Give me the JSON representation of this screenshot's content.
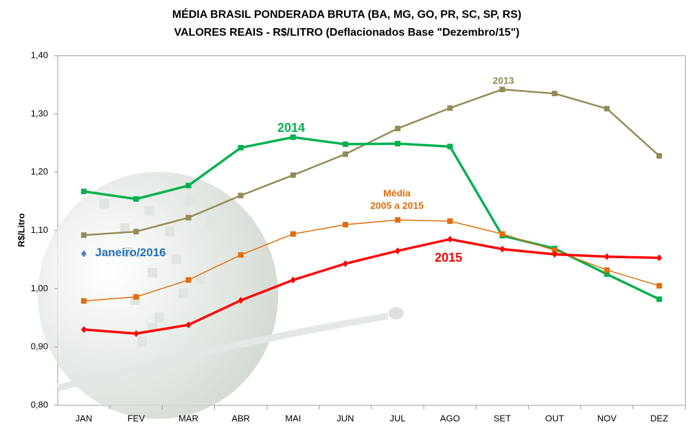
{
  "chart_data": {
    "type": "line",
    "title": [
      "MÉDIA BRASIL PONDERADA BRUTA (BA, MG, GO, PR, SC, SP, RS)",
      "VALORES REAIS - R$/LITRO (Deflacionados Base \"Dezembro/15\")"
    ],
    "y_label": "R$/Litro",
    "categories": [
      "JAN",
      "FEV",
      "MAR",
      "ABR",
      "MAI",
      "JUN",
      "JUL",
      "AGO",
      "SET",
      "OUT",
      "NOV",
      "DEZ"
    ],
    "ylim": [
      0.8,
      1.4
    ],
    "yticks": [
      {
        "value": 0.8,
        "label": "0,80"
      },
      {
        "value": 0.9,
        "label": "0,90"
      },
      {
        "value": 1.0,
        "label": "1,00"
      },
      {
        "value": 1.1,
        "label": "1,10"
      },
      {
        "value": 1.2,
        "label": "1,20"
      },
      {
        "value": 1.3,
        "label": "1,30"
      },
      {
        "value": 1.4,
        "label": "1,40"
      }
    ],
    "grid": false,
    "series": [
      {
        "name": "2013",
        "color": "#948a54",
        "marker": "square",
        "values": [
          1.092,
          1.098,
          1.122,
          1.16,
          1.195,
          1.231,
          1.275,
          1.31,
          1.342,
          1.335,
          1.309,
          1.228
        ]
      },
      {
        "name": "2014",
        "color": "#00b050",
        "marker": "square",
        "values": [
          1.167,
          1.154,
          1.177,
          1.242,
          1.26,
          1.248,
          1.249,
          1.244,
          1.091,
          1.069,
          1.025,
          0.982
        ]
      },
      {
        "name": "Média\n2005 a 2015",
        "color": "#e36c09",
        "marker": "square",
        "values": [
          0.979,
          0.986,
          1.015,
          1.058,
          1.094,
          1.11,
          1.118,
          1.116,
          1.094,
          1.066,
          1.032,
          1.005
        ]
      },
      {
        "name": "2015",
        "color": "#ff0000",
        "marker": "diamond",
        "values": [
          0.93,
          0.923,
          0.938,
          0.98,
          1.015,
          1.043,
          1.065,
          1.085,
          1.068,
          1.059,
          1.055,
          1.053
        ]
      },
      {
        "name": "Janeiro/2016",
        "color": "#4f81bd",
        "marker": "diamond",
        "values": [
          1.06,
          null,
          null,
          null,
          null,
          null,
          null,
          null,
          null,
          null,
          null,
          null
        ]
      }
    ]
  }
}
